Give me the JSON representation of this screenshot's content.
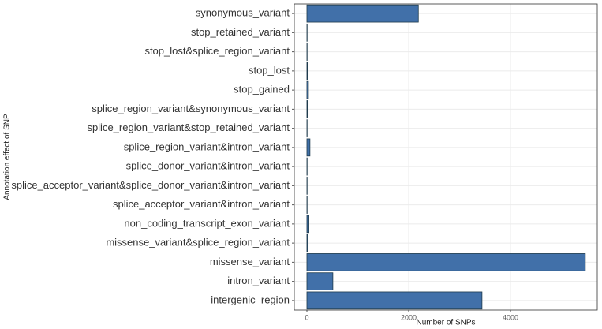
{
  "chart_data": {
    "type": "barh",
    "x_label": "Number of SNPs",
    "y_label": "Annotation effect of SNP",
    "categories": [
      "synonymous_variant",
      "stop_retained_variant",
      "stop_lost&splice_region_variant",
      "stop_lost",
      "stop_gained",
      "splice_region_variant&synonymous_variant",
      "splice_region_variant&stop_retained_variant",
      "splice_region_variant&intron_variant",
      "splice_donor_variant&intron_variant",
      "splice_acceptor_variant&splice_donor_variant&intron_variant",
      "splice_acceptor_variant&intron_variant",
      "non_coding_transcript_exon_variant",
      "missense_variant&splice_region_variant",
      "missense_variant",
      "intron_variant",
      "intergenic_region"
    ],
    "values": [
      2190,
      5,
      5,
      10,
      30,
      10,
      5,
      60,
      5,
      5,
      5,
      40,
      15,
      5470,
      510,
      3440
    ],
    "color": "#4170a9",
    "xlim": [
      -248,
      5705
    ],
    "xticks": [
      0,
      2000,
      4000
    ],
    "grid": true
  }
}
